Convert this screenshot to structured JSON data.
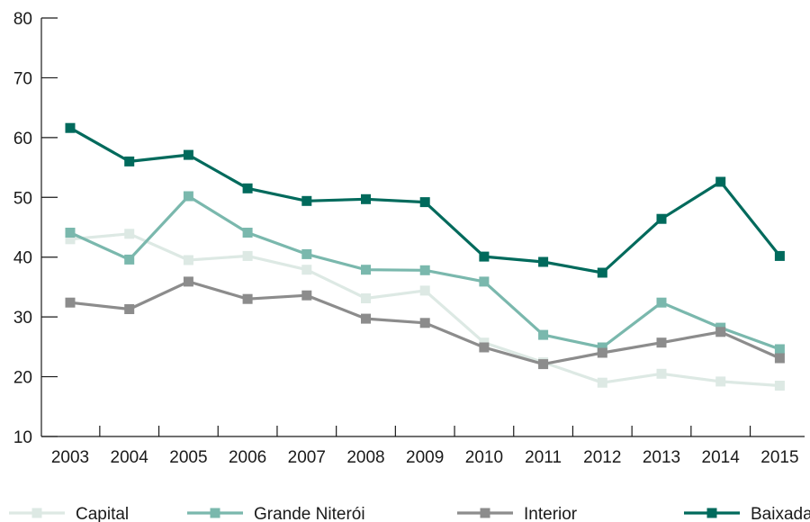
{
  "chart_data": {
    "type": "line",
    "title": "",
    "xlabel": "",
    "ylabel": "",
    "categories": [
      "2003",
      "2004",
      "2005",
      "2006",
      "2007",
      "2008",
      "2009",
      "2010",
      "2011",
      "2012",
      "2013",
      "2014",
      "2015"
    ],
    "ylim": [
      10,
      80
    ],
    "yticks": [
      10,
      20,
      30,
      40,
      50,
      60,
      70,
      80
    ],
    "grid": false,
    "legend_position": "bottom",
    "series": [
      {
        "name": "Capital",
        "color": "#dde9e4",
        "marker": "square",
        "values": [
          43.0,
          43.9,
          39.5,
          40.2,
          37.9,
          33.1,
          34.4,
          25.7,
          22.4,
          19.0,
          20.5,
          19.2,
          18.5
        ]
      },
      {
        "name": "Grande Niterói",
        "color": "#7ab8ad",
        "marker": "square",
        "values": [
          44.1,
          39.6,
          50.2,
          44.1,
          40.5,
          37.9,
          37.8,
          35.9,
          27.0,
          24.9,
          32.4,
          28.2,
          24.6
        ]
      },
      {
        "name": "Interior",
        "color": "#8c8c8c",
        "marker": "square",
        "values": [
          32.4,
          31.3,
          35.9,
          33.0,
          33.6,
          29.7,
          29.0,
          24.9,
          22.1,
          24.0,
          25.7,
          27.5,
          23.1
        ]
      },
      {
        "name": "Baixada",
        "color": "#006a5c",
        "marker": "square",
        "values": [
          61.6,
          56.0,
          57.1,
          51.5,
          49.4,
          49.7,
          49.2,
          40.1,
          39.2,
          37.4,
          46.4,
          52.6,
          40.2
        ]
      }
    ]
  }
}
